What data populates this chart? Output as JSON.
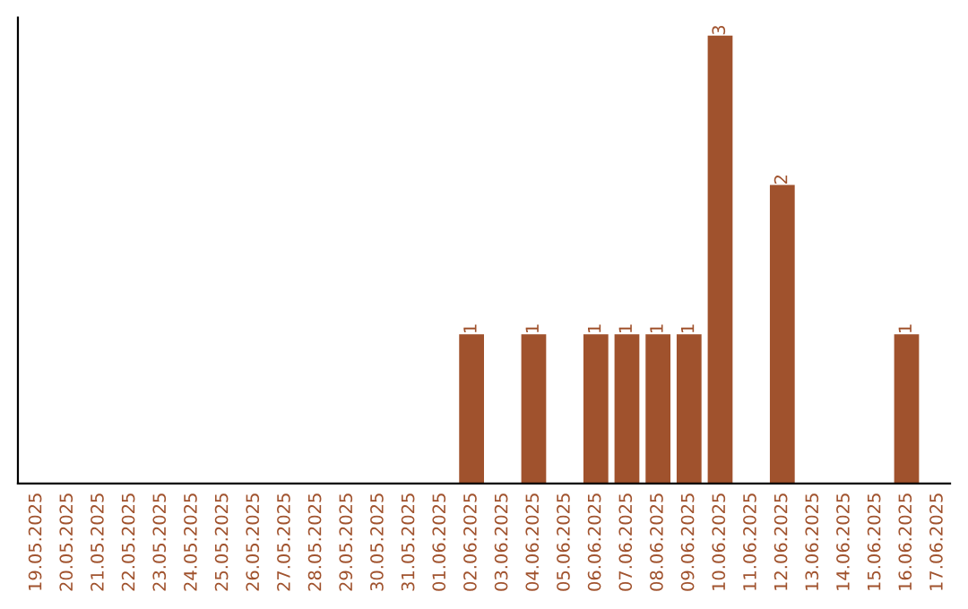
{
  "chart_data": {
    "type": "bar",
    "categories": [
      "19.05.2025",
      "20.05.2025",
      "21.05.2025",
      "22.05.2025",
      "23.05.2025",
      "24.05.2025",
      "25.05.2025",
      "26.05.2025",
      "27.05.2025",
      "28.05.2025",
      "29.05.2025",
      "30.05.2025",
      "31.05.2025",
      "01.06.2025",
      "02.06.2025",
      "03.06.2025",
      "04.06.2025",
      "05.06.2025",
      "06.06.2025",
      "07.06.2025",
      "08.06.2025",
      "09.06.2025",
      "10.06.2025",
      "11.06.2025",
      "12.06.2025",
      "13.06.2025",
      "14.06.2025",
      "15.06.2025",
      "16.06.2025",
      "17.06.2025"
    ],
    "values": [
      null,
      null,
      null,
      null,
      null,
      null,
      null,
      null,
      null,
      null,
      null,
      null,
      null,
      null,
      1,
      null,
      1,
      null,
      1,
      1,
      1,
      1,
      3,
      null,
      2,
      null,
      null,
      null,
      1,
      null
    ],
    "data_labels": true,
    "color": "#a0522d",
    "tick_labels": "x",
    "grid": false,
    "legend": false
  }
}
